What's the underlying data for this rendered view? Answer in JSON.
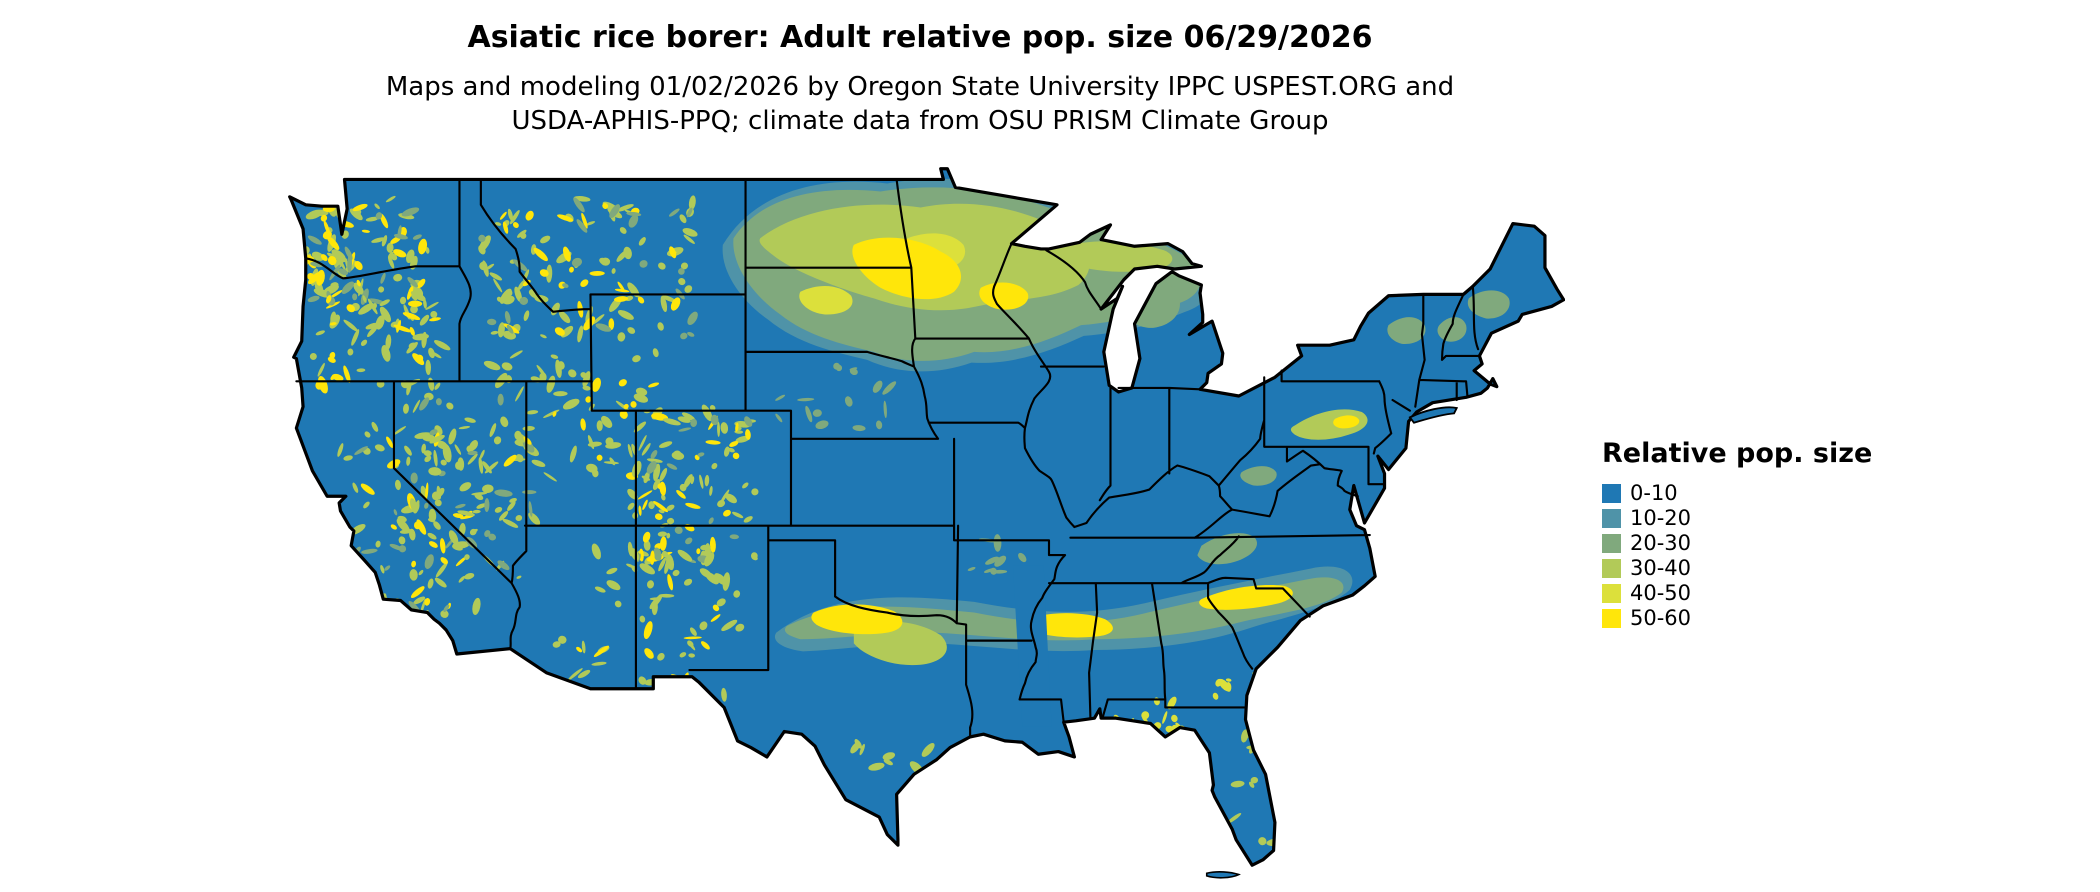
{
  "header": {
    "title": "Asiatic rice borer: Adult relative pop. size 06/29/2026",
    "subtitle_line1": "Maps and modeling 01/02/2026 by Oregon State University IPPC USPEST.ORG and",
    "subtitle_line2": "USDA-APHIS-PPQ; climate data from OSU PRISM Climate Group"
  },
  "legend": {
    "title": "Relative pop. size",
    "items": [
      {
        "label": "0-10",
        "color": "#1f78b4"
      },
      {
        "label": "10-20",
        "color": "#4f93a8"
      },
      {
        "label": "20-30",
        "color": "#80a97d"
      },
      {
        "label": "30-40",
        "color": "#b2ca58"
      },
      {
        "label": "40-50",
        "color": "#dce03b"
      },
      {
        "label": "50-60",
        "color": "#ffe60a"
      }
    ]
  },
  "map": {
    "region": "Conterminous United States",
    "border_color": "#000000",
    "water_color": "#ffffff"
  }
}
